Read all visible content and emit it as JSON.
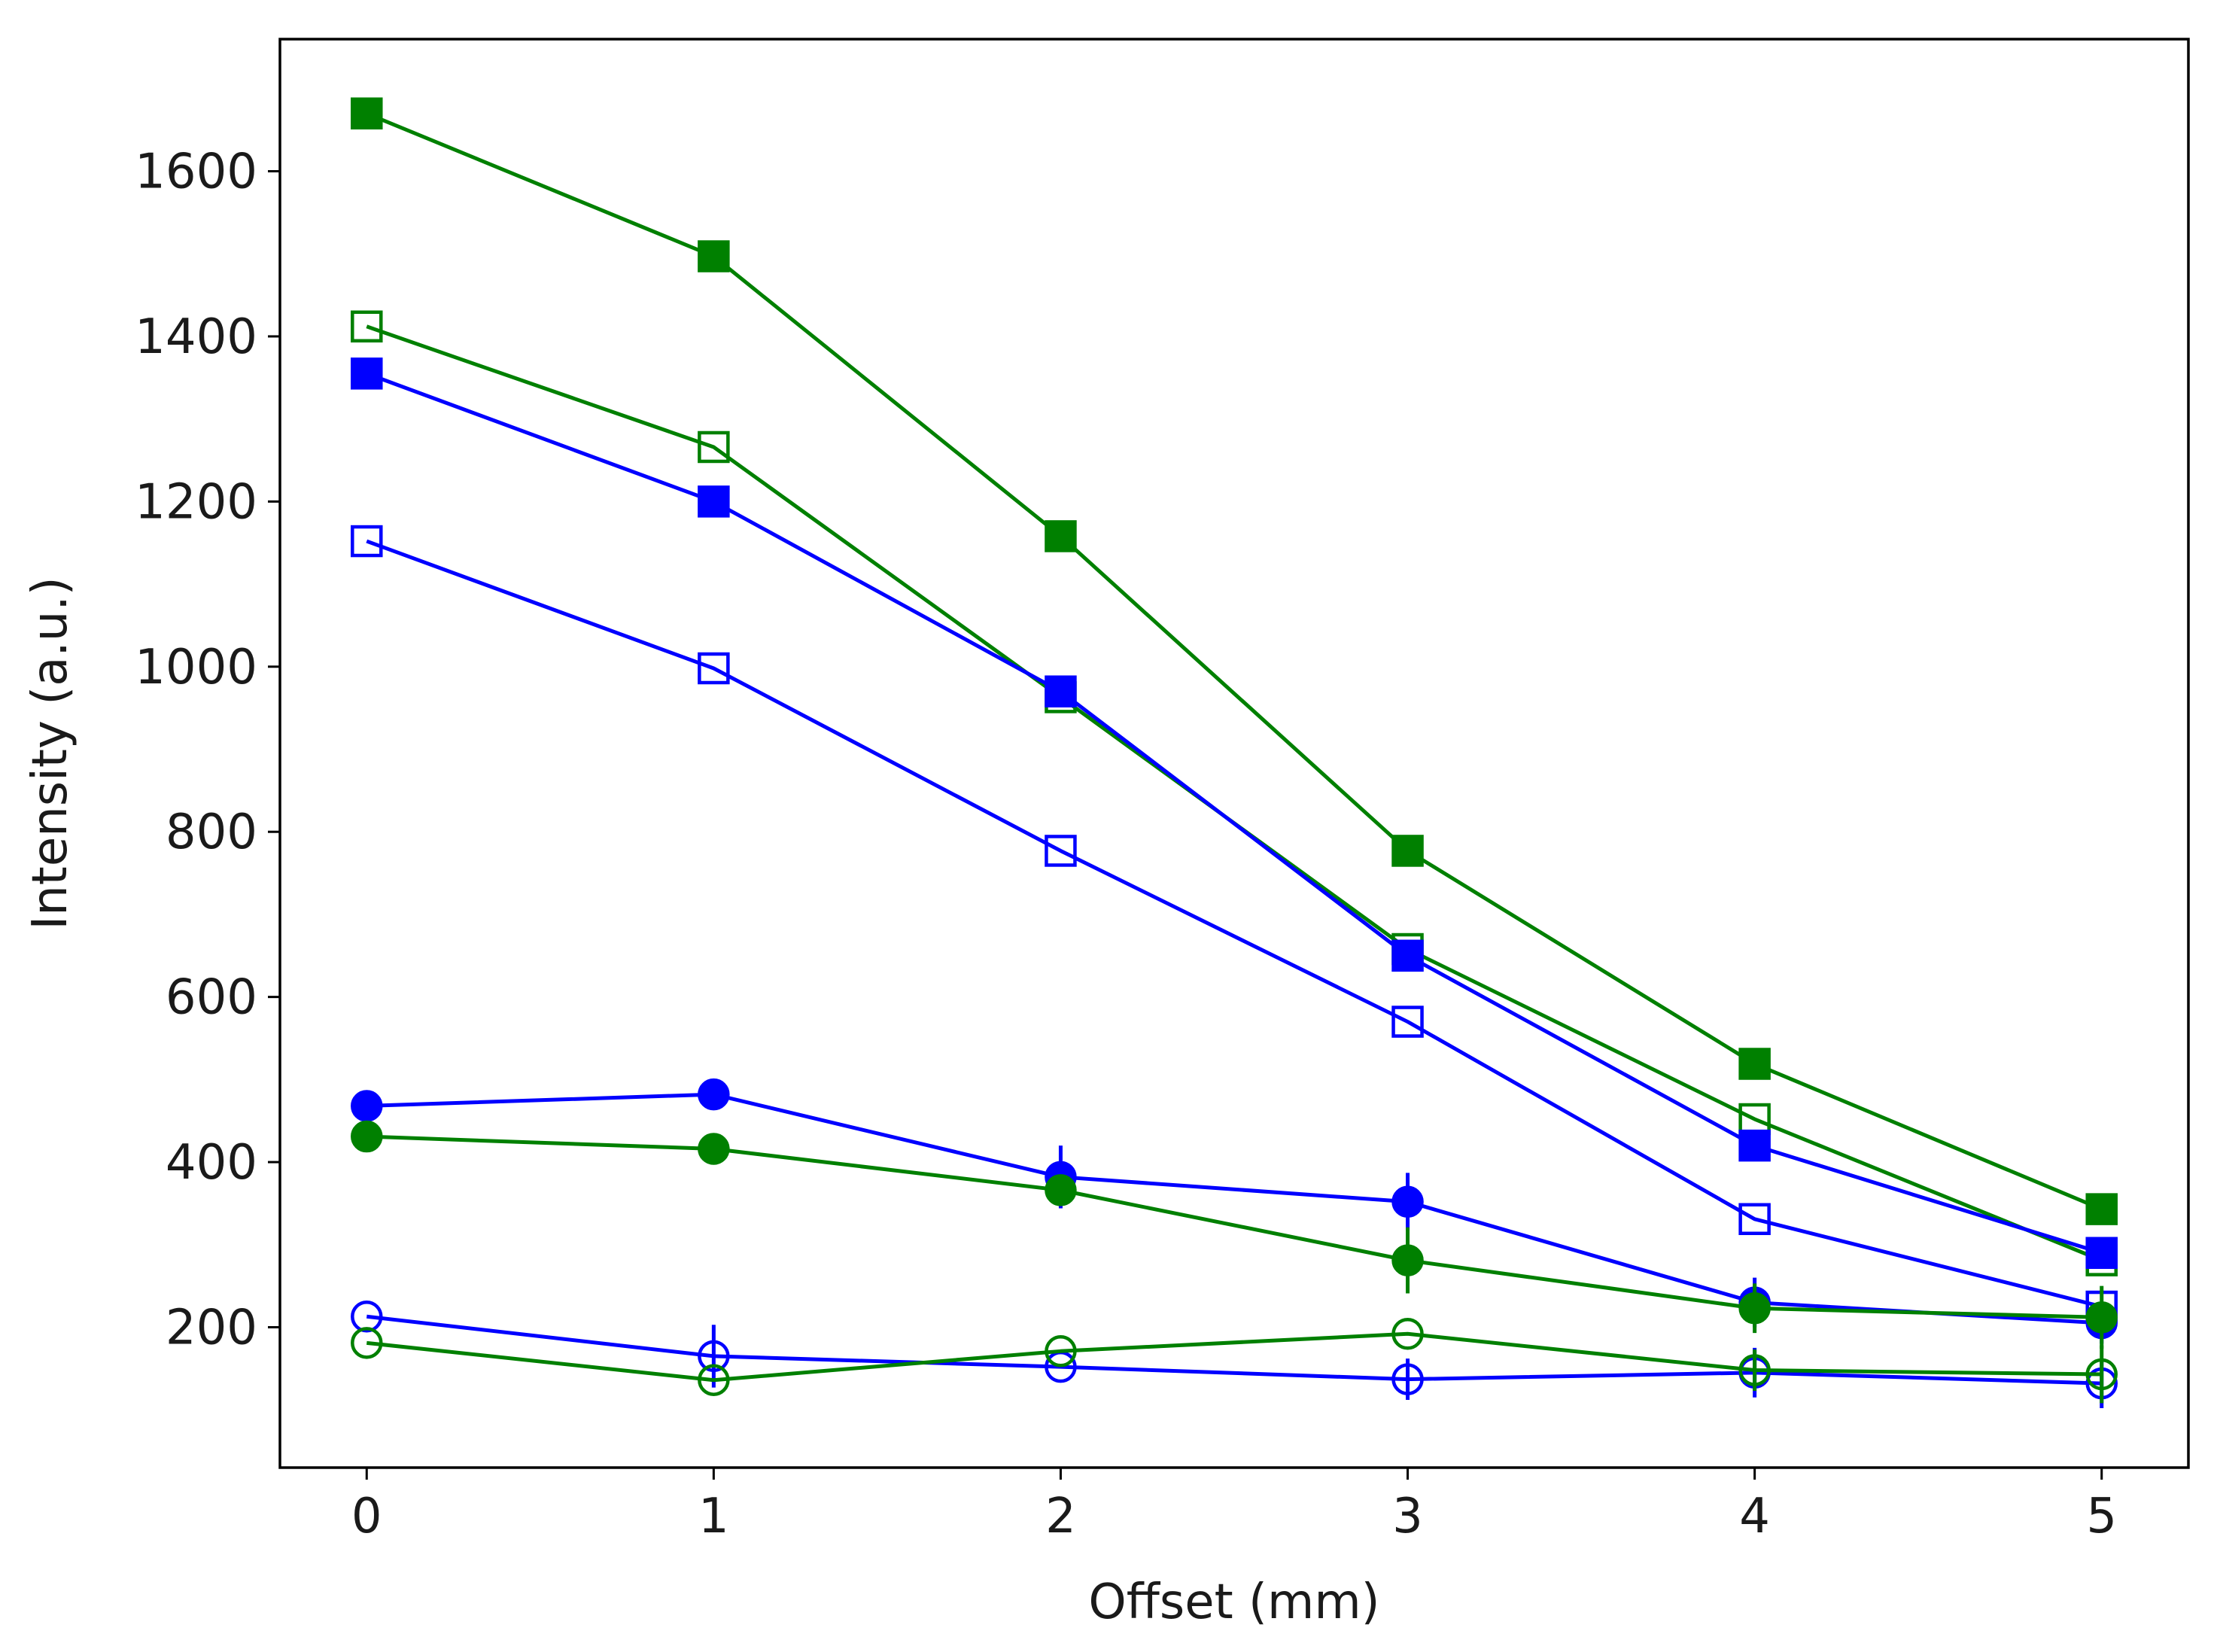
{
  "chart_data": {
    "type": "line",
    "title": "",
    "xlabel": "Offset (mm)",
    "ylabel": "Intensity (a.u.)",
    "xlim": [
      -0.25,
      5.25
    ],
    "ylim": [
      30,
      1760
    ],
    "grid": false,
    "x": [
      0,
      1,
      2,
      3,
      4,
      5
    ],
    "xticks": [
      0,
      1,
      2,
      3,
      4,
      5
    ],
    "xtick_labels": [
      "0",
      "1",
      "2",
      "3",
      "4",
      "5"
    ],
    "yticks": [
      200,
      400,
      600,
      800,
      1000,
      1200,
      1400,
      1600
    ],
    "ytick_labels": [
      "200",
      "400",
      "600",
      "800",
      "1000",
      "1200",
      "1400",
      "1600"
    ],
    "series": [
      {
        "name": "green filled square",
        "color": "#008000",
        "marker": "square",
        "filled": true,
        "values": [
          1670,
          1497,
          1158,
          777,
          519,
          343
        ],
        "errors": [
          0,
          0,
          0,
          0,
          0,
          0
        ]
      },
      {
        "name": "green open square",
        "color": "#008000",
        "marker": "square",
        "filled": false,
        "values": [
          1412,
          1266,
          963,
          658,
          452,
          281
        ],
        "errors": [
          0,
          0,
          0,
          0,
          0,
          0
        ]
      },
      {
        "name": "blue filled square",
        "color": "#0000ff",
        "marker": "square",
        "filled": true,
        "values": [
          1355,
          1200,
          970,
          650,
          420,
          290
        ],
        "errors": [
          0,
          0,
          0,
          0,
          0,
          0
        ]
      },
      {
        "name": "blue open square",
        "color": "#0000ff",
        "marker": "square",
        "filled": false,
        "values": [
          1152,
          998,
          777,
          570,
          331,
          225
        ],
        "errors": [
          0,
          0,
          0,
          0,
          0,
          0
        ]
      },
      {
        "name": "blue filled circle",
        "color": "#0000ff",
        "marker": "circle",
        "filled": true,
        "values": [
          468,
          482,
          382,
          352,
          230,
          205
        ],
        "errors": [
          0,
          0,
          38,
          35,
          30,
          25
        ]
      },
      {
        "name": "green filled circle",
        "color": "#008000",
        "marker": "circle",
        "filled": true,
        "values": [
          431,
          416,
          366,
          281,
          223,
          212
        ],
        "errors": [
          0,
          0,
          0,
          40,
          30,
          38
        ]
      },
      {
        "name": "blue open circle",
        "color": "#0000ff",
        "marker": "circle",
        "filled": false,
        "values": [
          213,
          165,
          152,
          137,
          145,
          132
        ],
        "errors": [
          0,
          38,
          0,
          25,
          30,
          30
        ]
      },
      {
        "name": "green open circle",
        "color": "#008000",
        "marker": "circle",
        "filled": false,
        "values": [
          181,
          136,
          171,
          192,
          148,
          143
        ],
        "errors": [
          0,
          0,
          0,
          0,
          25,
          35
        ]
      }
    ]
  }
}
